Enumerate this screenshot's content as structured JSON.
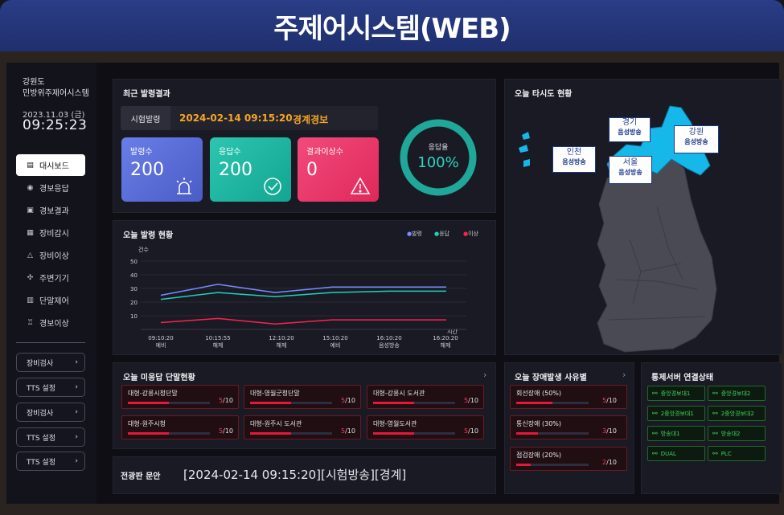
{
  "app": {
    "title": "주제어시스템(WEB)"
  },
  "sidebar": {
    "region": "강원도",
    "org": "민방위주제어시스템",
    "date": "2023.11.03 (금)",
    "time": "09:25:23",
    "menu": [
      {
        "label": "대시보드",
        "icon": "dashboard-icon",
        "active": true
      },
      {
        "label": "경보응답",
        "icon": "broadcast-icon"
      },
      {
        "label": "경보결과",
        "icon": "report-icon"
      },
      {
        "label": "장비감시",
        "icon": "monitor-icon"
      },
      {
        "label": "장비이상",
        "icon": "warning-icon"
      },
      {
        "label": "주변기기",
        "icon": "peripheral-icon"
      },
      {
        "label": "단말제어",
        "icon": "terminal-icon"
      },
      {
        "label": "경보이상",
        "icon": "alarm-icon"
      }
    ],
    "buttons": [
      "장비검사",
      "TTS 설정",
      "장비검사",
      "TTS 설정",
      "TTS 설정"
    ]
  },
  "recent": {
    "title": "최근 발령결과",
    "tag": "시험발령",
    "timestamp": "2024-02-14 09:15:20",
    "alert": "경계경보",
    "cards": [
      {
        "label": "발령수",
        "value": "200",
        "color": "#5a6fd8",
        "icon": "siren-icon"
      },
      {
        "label": "응답수",
        "value": "200",
        "color": "#1fb8a4",
        "icon": "check-circle-icon"
      },
      {
        "label": "결과이상수",
        "value": "0",
        "color": "#f0366a",
        "icon": "warning-icon"
      }
    ],
    "response_rate_label": "응답율",
    "response_rate": "100%",
    "response_rate_value": 100
  },
  "chart": {
    "title": "오늘 발령 현황",
    "legend": [
      {
        "name": "발령",
        "color": "#7a8cff"
      },
      {
        "name": "응답",
        "color": "#1fd1b8"
      },
      {
        "name": "이상",
        "color": "#ff2050"
      }
    ]
  },
  "chart_data": {
    "type": "line",
    "title": "오늘 발령 현황",
    "ylabel": "건수",
    "xlabel": "시간",
    "ylim": [
      0,
      50
    ],
    "yticks": [
      10,
      20,
      30,
      40,
      50
    ],
    "categories": [
      {
        "time": "09:10:20",
        "kind": "예비"
      },
      {
        "time": "10:15:55",
        "kind": "해제"
      },
      {
        "time": "12:10:20",
        "kind": "해제"
      },
      {
        "time": "15:10:20",
        "kind": "예비"
      },
      {
        "time": "16:10:20",
        "kind": "음성방송"
      },
      {
        "time": "16:20:20",
        "kind": "해제"
      }
    ],
    "series": [
      {
        "name": "발령",
        "color": "#7a8cff",
        "values": [
          25,
          33,
          27,
          31,
          31,
          31
        ]
      },
      {
        "name": "응답",
        "color": "#1fd1b8",
        "values": [
          22,
          27,
          24,
          27,
          28,
          28
        ]
      },
      {
        "name": "이상",
        "color": "#ff2050",
        "values": [
          5,
          8,
          4,
          7,
          7,
          7
        ]
      }
    ],
    "grid": true,
    "legend": "top-right"
  },
  "map": {
    "title": "오늘 타시도 현황",
    "labels": [
      {
        "name": "경기",
        "status": "음성방송"
      },
      {
        "name": "강원",
        "status": "음성방송"
      },
      {
        "name": "인천",
        "status": "음성방송"
      },
      {
        "name": "서울",
        "status": "음성방송"
      }
    ]
  },
  "unanswered": {
    "title": "오늘 미응답 단말현황",
    "items": [
      {
        "name": "대형-강릉시청단말",
        "count": "5",
        "total": "/10",
        "ratio": 0.5
      },
      {
        "name": "대형-영월군청단말",
        "count": "5",
        "total": "/10",
        "ratio": 0.5
      },
      {
        "name": "대형-강릉시 도서관",
        "count": "5",
        "total": "/10",
        "ratio": 0.5
      },
      {
        "name": "대형-원주시청",
        "count": "5",
        "total": "/10",
        "ratio": 0.5
      },
      {
        "name": "대형-원주시 도서관",
        "count": "5",
        "total": "/10",
        "ratio": 0.5
      },
      {
        "name": "대형-영월도서관",
        "count": "5",
        "total": "/10",
        "ratio": 0.5
      }
    ]
  },
  "faults": {
    "title": "오늘 장애발생 사유별",
    "items": [
      {
        "name": "회선장애 (50%)",
        "count": "5",
        "total": "/10",
        "ratio": 0.5
      },
      {
        "name": "통신장애 (30%)",
        "count": "3",
        "total": "/10",
        "ratio": 0.3
      },
      {
        "name": "점검장애 (20%)",
        "count": "2",
        "total": "/10",
        "ratio": 0.2
      }
    ]
  },
  "servers": {
    "title": "통제서버 연결상태",
    "items": [
      "중앙경보대1",
      "중앙경보대2",
      "2중앙경보대1",
      "2중앙경보대2",
      "방송대1",
      "방송대2",
      "DUAL",
      "PLC"
    ]
  },
  "board": {
    "label": "전광판 문안",
    "text": "[2024-02-14 09:15:20][시험방송][경계]"
  }
}
